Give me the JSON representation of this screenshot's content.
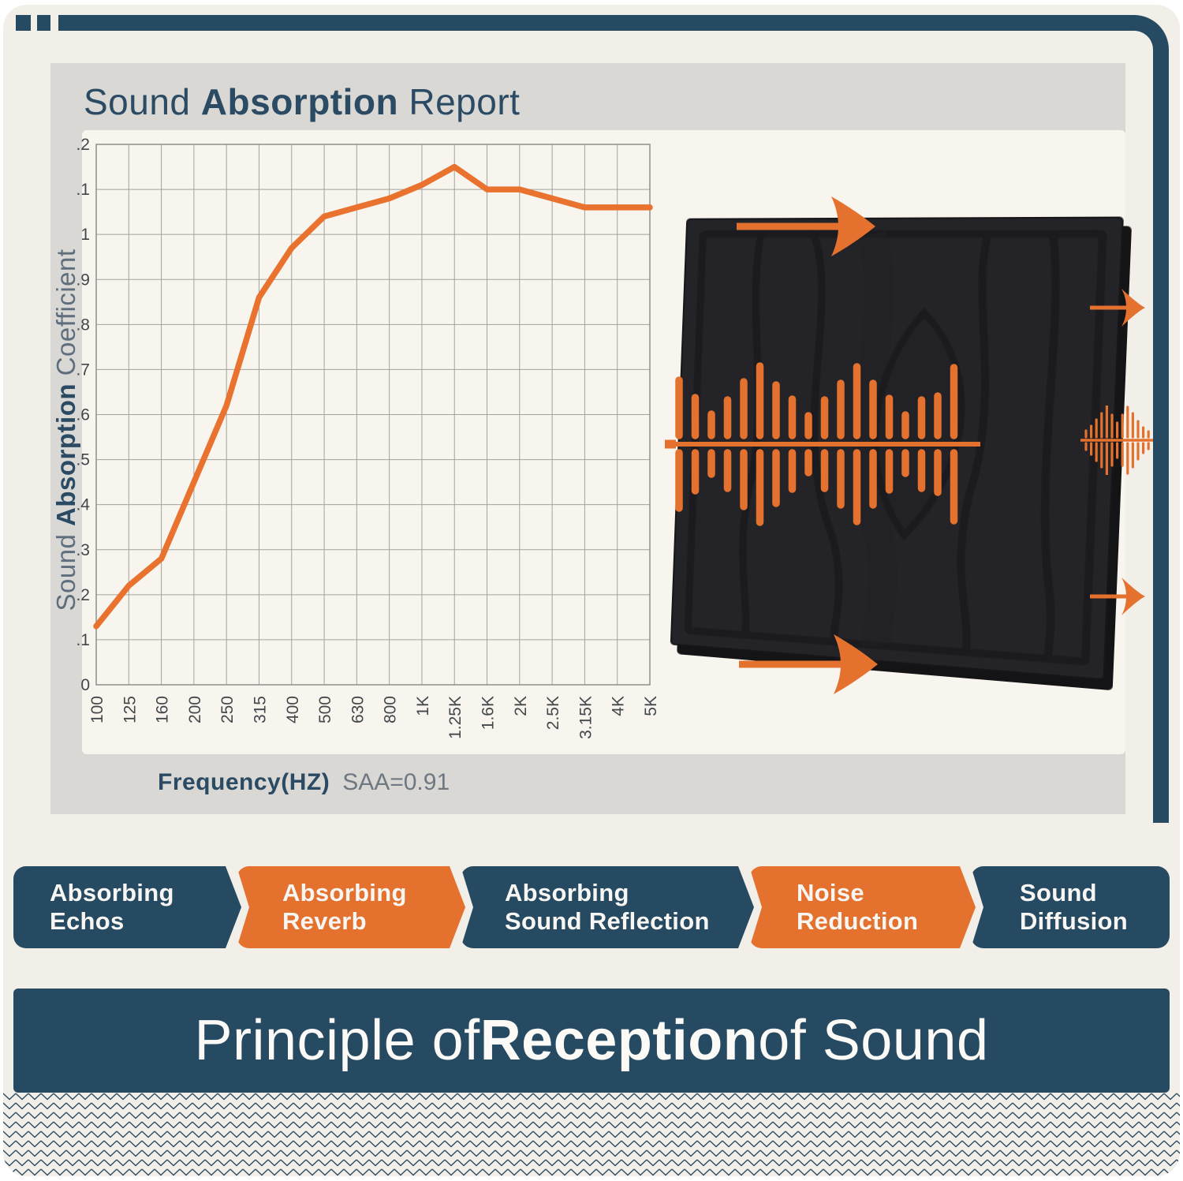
{
  "report": {
    "title": {
      "pre": "Sound ",
      "bold": "Absorption",
      "post": " Report"
    },
    "y_axis_label": {
      "pre": "Sound ",
      "bold": "Absorption",
      "post": " Coefficient"
    },
    "x_axis_title": "Frequency(HZ)",
    "saa_value": "SAA=0.91"
  },
  "chart_data": {
    "type": "line",
    "title": "Sound Absorption Report",
    "xlabel": "Frequency(HZ)",
    "ylabel": "Sound Absorption Coefficient",
    "categories": [
      "100",
      "125",
      "160",
      "200",
      "250",
      "315",
      "400",
      "500",
      "630",
      "800",
      "1K",
      "1.25K",
      "1.6K",
      "2K",
      "2.5K",
      "3.15K",
      "4K",
      "5K"
    ],
    "values": [
      0.13,
      0.22,
      0.28,
      0.45,
      0.62,
      0.86,
      0.97,
      1.04,
      1.06,
      1.08,
      1.11,
      1.15,
      1.1,
      1.1,
      1.08,
      1.06,
      1.06,
      1.06
    ],
    "ylim": [
      0,
      1.2
    ],
    "ytick_step": 0.1,
    "grid": true,
    "legend_position": "none",
    "annotation": "SAA=0.91",
    "line_color": "#e8722e"
  },
  "badges": [
    {
      "lines": [
        "Absorbing",
        "Echos"
      ],
      "variant": "navy"
    },
    {
      "lines": [
        "Absorbing",
        "Reverb"
      ],
      "variant": "orange"
    },
    {
      "lines": [
        "Absorbing",
        "Sound Reflection"
      ],
      "variant": "navy"
    },
    {
      "lines": [
        "Noise",
        "Reduction"
      ],
      "variant": "orange"
    },
    {
      "lines": [
        "Sound",
        "Diffusion"
      ],
      "variant": "navy"
    }
  ],
  "banner": {
    "pre": "Principle of ",
    "bold": "Reception",
    "post": " of Sound"
  },
  "colors": {
    "navy": "#264a62",
    "orange": "#e4722e",
    "page_cream": "#f2efe8",
    "gray_panel": "#d9d8d4",
    "plot_background": "#f7f5ee",
    "grid_line": "#a3a29d",
    "chart_line": "#e8722e",
    "title_navy": "#2b4a63",
    "axis_muted_blue": "#5e6e7d",
    "tick_text": "#43474b",
    "saa_gray": "#6e7881",
    "acoustic_panel_black": "#242428"
  },
  "icons": {
    "waveform": "sound-waveform-icon",
    "mini_waveform": "small-sound-waveform-icon",
    "arrows": "sound-direction-arrow-icon"
  },
  "decor": {
    "waveform_bars": [
      70,
      48,
      27,
      45,
      68,
      88,
      64,
      46,
      25,
      45,
      66,
      87,
      66,
      47,
      26,
      45,
      50,
      86
    ],
    "mini_waveform_bars": [
      8,
      14,
      22,
      30,
      40,
      28,
      18,
      28,
      38,
      30,
      20,
      12,
      7
    ]
  }
}
